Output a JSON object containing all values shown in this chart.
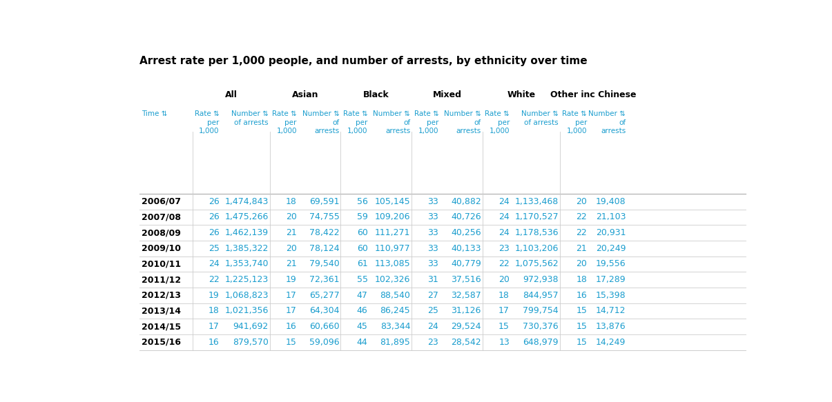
{
  "title": "Arrest rate per 1,000 people, and number of arrests, by ethnicity over time",
  "title_fontsize": 11,
  "background_color": "#ffffff",
  "header_color": "#000000",
  "subheader_color": "#1a9dce",
  "data_color": "#1a9dce",
  "group_headers": [
    "All",
    "Asian",
    "Black",
    "Mixed",
    "White",
    "Other inc Chinese"
  ],
  "rows": [
    [
      "2006/07",
      "26",
      "1,474,843",
      "18",
      "69,591",
      "56",
      "105,145",
      "33",
      "40,882",
      "24",
      "1,133,468",
      "20",
      "19,408"
    ],
    [
      "2007/08",
      "26",
      "1,475,266",
      "20",
      "74,755",
      "59",
      "109,206",
      "33",
      "40,726",
      "24",
      "1,170,527",
      "22",
      "21,103"
    ],
    [
      "2008/09",
      "26",
      "1,462,139",
      "21",
      "78,422",
      "60",
      "111,271",
      "33",
      "40,256",
      "24",
      "1,178,536",
      "22",
      "20,931"
    ],
    [
      "2009/10",
      "25",
      "1,385,322",
      "20",
      "78,124",
      "60",
      "110,977",
      "33",
      "40,133",
      "23",
      "1,103,206",
      "21",
      "20,249"
    ],
    [
      "2010/11",
      "24",
      "1,353,740",
      "21",
      "79,540",
      "61",
      "113,085",
      "33",
      "40,779",
      "22",
      "1,075,562",
      "20",
      "19,556"
    ],
    [
      "2011/12",
      "22",
      "1,225,123",
      "19",
      "72,361",
      "55",
      "102,326",
      "31",
      "37,516",
      "20",
      "972,938",
      "18",
      "17,289"
    ],
    [
      "2012/13",
      "19",
      "1,068,823",
      "17",
      "65,277",
      "47",
      "88,540",
      "27",
      "32,587",
      "18",
      "844,957",
      "16",
      "15,398"
    ],
    [
      "2013/14",
      "18",
      "1,021,356",
      "17",
      "64,304",
      "46",
      "86,245",
      "25",
      "31,126",
      "17",
      "799,754",
      "15",
      "14,712"
    ],
    [
      "2014/15",
      "17",
      "941,692",
      "16",
      "60,660",
      "45",
      "83,344",
      "24",
      "29,524",
      "15",
      "730,376",
      "15",
      "13,876"
    ],
    [
      "2015/16",
      "16",
      "879,570",
      "15",
      "59,096",
      "44",
      "81,895",
      "23",
      "28,542",
      "13",
      "648,979",
      "15",
      "14,249"
    ]
  ],
  "line_color": "#cccccc",
  "header_line_color": "#aaaaaa",
  "fig_width": 12.05,
  "fig_height": 5.83
}
